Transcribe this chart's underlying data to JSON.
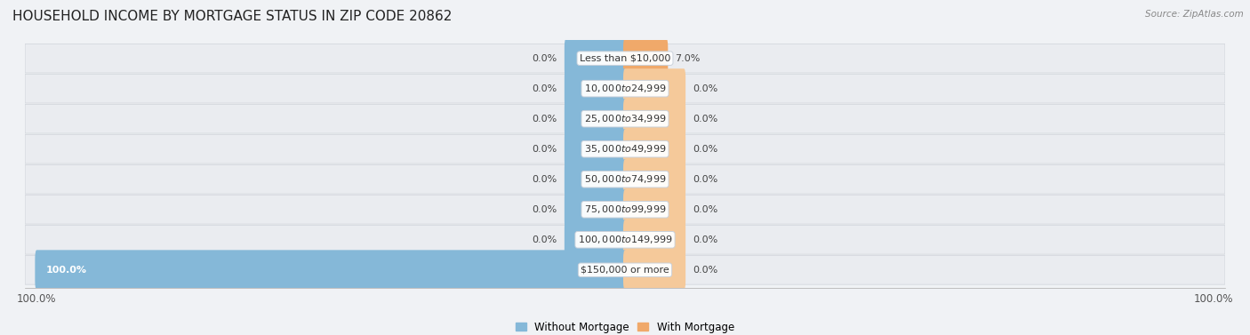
{
  "title": "HOUSEHOLD INCOME BY MORTGAGE STATUS IN ZIP CODE 20862",
  "source": "Source: ZipAtlas.com",
  "categories": [
    "Less than $10,000",
    "$10,000 to $24,999",
    "$25,000 to $34,999",
    "$35,000 to $49,999",
    "$50,000 to $74,999",
    "$75,000 to $99,999",
    "$100,000 to $149,999",
    "$150,000 or more"
  ],
  "without_mortgage": [
    0.0,
    0.0,
    0.0,
    0.0,
    0.0,
    0.0,
    0.0,
    100.0
  ],
  "with_mortgage": [
    7.0,
    0.0,
    0.0,
    0.0,
    0.0,
    0.0,
    0.0,
    0.0
  ],
  "color_without": "#85b8d8",
  "color_with": "#f0a96a",
  "color_with_light": "#f5c99a",
  "bg_odd": "#e8eef2",
  "bg_even": "#dde5ec",
  "axis_min": -100,
  "axis_max": 100,
  "bar_height": 0.72,
  "label_fontsize": 8.0,
  "tick_fontsize": 8.5,
  "legend_fontsize": 8.5,
  "title_fontsize": 11
}
